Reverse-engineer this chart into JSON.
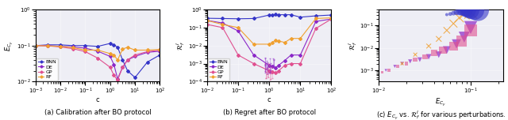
{
  "fig_width": 6.4,
  "fig_height": 1.52,
  "dpi": 100,
  "bg_color": "#eeeef5",
  "panel_a": {
    "caption": "(a) Calibration after BO protocol",
    "xlabel": "c",
    "ylabel": "$E_{C_y}$",
    "xlim_log": [
      -3,
      2
    ],
    "ylim_log": [
      -2,
      0
    ],
    "BNN": {
      "x": [
        -3,
        -2.5,
        -2,
        -1.5,
        -1,
        -0.5,
        0,
        0.15,
        0.3,
        0.5,
        0.7,
        1,
        1.5,
        2
      ],
      "y": [
        0.1,
        0.105,
        0.105,
        0.1,
        0.1,
        0.095,
        0.115,
        0.105,
        0.09,
        0.04,
        0.02,
        0.013,
        0.035,
        0.055
      ],
      "color": "#3535c8",
      "label": "BNN"
    },
    "DE": {
      "x": [
        -3,
        -2.5,
        -2,
        -1.5,
        -1,
        -0.5,
        0,
        0.15,
        0.3,
        0.5,
        0.7,
        1,
        1.5,
        2
      ],
      "y": [
        0.1,
        0.1,
        0.095,
        0.092,
        0.085,
        0.07,
        0.05,
        0.03,
        0.012,
        0.025,
        0.04,
        0.05,
        0.065,
        0.07
      ],
      "color": "#8b28c8",
      "label": "DE"
    },
    "GP": {
      "x": [
        -3,
        -2.5,
        -2,
        -1.5,
        -1,
        -0.5,
        0,
        0.15,
        0.3,
        0.5,
        0.7,
        1,
        1.5,
        2
      ],
      "y": [
        0.1,
        0.098,
        0.092,
        0.082,
        0.068,
        0.045,
        0.025,
        0.015,
        0.011,
        0.025,
        0.04,
        0.055,
        0.068,
        0.075
      ],
      "color": "#e05090",
      "label": "GP"
    },
    "RF": {
      "x": [
        -3,
        -2.5,
        -2,
        -1.5,
        -1,
        -0.5,
        0,
        0.15,
        0.3,
        0.5,
        0.7,
        1,
        1.5,
        2
      ],
      "y": [
        0.1,
        0.098,
        0.095,
        0.088,
        0.075,
        0.075,
        0.06,
        0.055,
        0.04,
        0.08,
        0.09,
        0.075,
        0.075,
        0.078
      ],
      "color": "#f0a030",
      "label": "RF"
    }
  },
  "panel_b": {
    "caption": "(b) Regret after BO protocol",
    "xlabel": "c",
    "ylabel": "$\\mathcal{R}_f^I$",
    "xlim_log": [
      -2,
      2
    ],
    "ylim_log": [
      -4,
      0
    ],
    "BNN": {
      "x": [
        -2,
        -1.5,
        -1,
        -0.5,
        0,
        0.1,
        0.2,
        0.3,
        0.5,
        0.7,
        1,
        1.5,
        2
      ],
      "y": [
        0.33,
        0.32,
        0.31,
        0.32,
        0.5,
        0.52,
        0.53,
        0.52,
        0.52,
        0.52,
        0.38,
        0.45,
        0.5
      ],
      "color": "#3535c8",
      "label": "BNN"
    },
    "DE": {
      "x": [
        -2,
        -1.5,
        -1,
        -0.5,
        0,
        0.1,
        0.2,
        0.3,
        0.5,
        0.7,
        1,
        1.5,
        2
      ],
      "y": [
        0.25,
        0.18,
        0.065,
        0.003,
        0.0008,
        0.0007,
        0.0006,
        0.0008,
        0.0015,
        0.003,
        0.003,
        0.22,
        0.3
      ],
      "color": "#8b28c8",
      "label": "DE"
    },
    "GP": {
      "x": [
        -2,
        -1.5,
        -1,
        -0.5,
        0,
        0.1,
        0.2,
        0.3,
        0.5,
        0.7,
        1,
        1.5,
        2
      ],
      "y": [
        0.15,
        0.1,
        0.003,
        0.001,
        0.0004,
        0.00035,
        0.0003,
        0.0004,
        0.0008,
        0.001,
        0.001,
        0.09,
        0.3
      ],
      "color": "#e05090",
      "label": "GP"
    },
    "RF": {
      "x": [
        -2,
        -1.5,
        -1,
        -0.5,
        0,
        0.1,
        0.2,
        0.3,
        0.5,
        0.7,
        1,
        1.5,
        2
      ],
      "y": [
        0.25,
        0.15,
        0.1,
        0.012,
        0.012,
        0.015,
        0.02,
        0.018,
        0.015,
        0.025,
        0.025,
        0.32,
        0.35
      ],
      "color": "#f0a030",
      "label": "RF"
    }
  },
  "panel_c": {
    "caption": "(c) $E_{C_y}$ vs. $\\mathcal{R}_f^I$ for various perturbations.",
    "xlabel": "$E_{C_y}$",
    "ylabel": "$\\mathcal{R}_f^I$",
    "xlim_log": [
      -2,
      -0.65
    ],
    "ylim_log": [
      -3.5,
      -0.3
    ],
    "BNN": {
      "x": [
        0.055,
        0.06,
        0.065,
        0.07,
        0.075,
        0.08,
        0.085,
        0.09,
        0.095,
        0.1,
        0.11,
        0.12
      ],
      "y": [
        0.3,
        0.32,
        0.35,
        0.38,
        0.4,
        0.42,
        0.43,
        0.44,
        0.45,
        0.46,
        0.47,
        0.48
      ],
      "sizes": [
        8,
        12,
        18,
        25,
        40,
        60,
        90,
        130,
        180,
        240,
        310,
        400
      ],
      "color": "#3535c8",
      "alpha": 0.6,
      "marker": "o"
    },
    "DE": {
      "x": [
        0.012,
        0.015,
        0.018,
        0.022,
        0.028,
        0.035,
        0.045,
        0.055,
        0.07,
        0.085,
        0.1
      ],
      "y": [
        0.001,
        0.0015,
        0.002,
        0.0025,
        0.003,
        0.004,
        0.005,
        0.008,
        0.015,
        0.03,
        0.08
      ],
      "sizes": [
        6,
        8,
        10,
        14,
        18,
        25,
        35,
        50,
        70,
        100,
        140
      ],
      "color": "#8b28c8",
      "alpha": 0.7,
      "marker": "v"
    },
    "GP": {
      "x": [
        0.011,
        0.013,
        0.016,
        0.02,
        0.025,
        0.032,
        0.04,
        0.05,
        0.065,
        0.08,
        0.1
      ],
      "y": [
        0.0008,
        0.001,
        0.0015,
        0.002,
        0.003,
        0.004,
        0.006,
        0.008,
        0.012,
        0.02,
        0.06
      ],
      "sizes": [
        5,
        7,
        9,
        12,
        16,
        22,
        30,
        45,
        65,
        90,
        130
      ],
      "color": "#e05090",
      "alpha": 0.6,
      "marker": "s"
    },
    "RF": {
      "x": [
        0.018,
        0.025,
        0.035,
        0.045,
        0.055,
        0.065,
        0.075,
        0.085,
        0.1
      ],
      "y": [
        0.002,
        0.005,
        0.012,
        0.025,
        0.06,
        0.12,
        0.22,
        0.32,
        0.38
      ],
      "sizes": [
        8,
        12,
        18,
        25,
        35,
        50,
        70,
        95,
        130
      ],
      "color": "#f0a030",
      "alpha": 0.8,
      "marker": "x"
    }
  }
}
